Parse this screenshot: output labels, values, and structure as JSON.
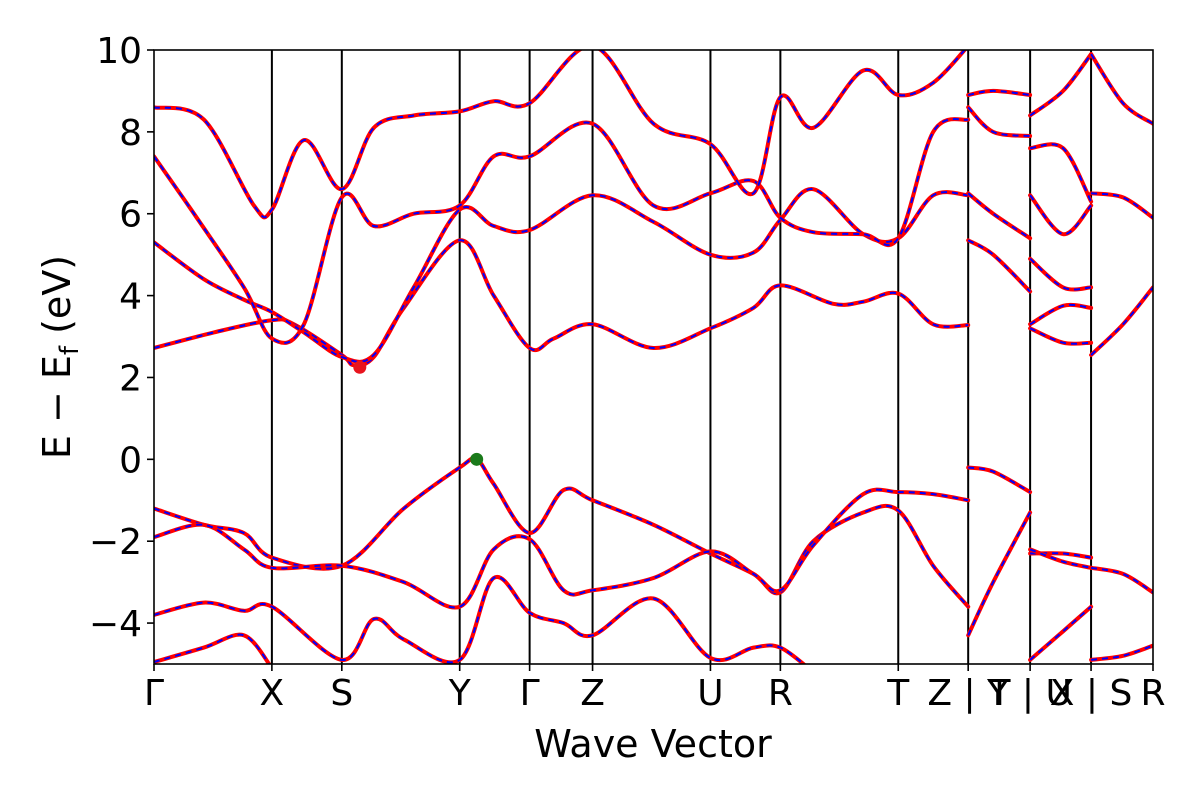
{
  "chart_data": {
    "type": "line",
    "title": "",
    "xlabel": "Wave Vector",
    "ylabel": "E − E_f (eV)",
    "ylabel_parts": {
      "main": "E − E",
      "sub": "f",
      "unit": " (eV)"
    },
    "ylim": [
      -5,
      10
    ],
    "yticks": [
      10,
      8,
      6,
      4,
      2,
      0,
      -2,
      -4
    ],
    "ytick_labels": [
      "10",
      "8",
      "6",
      "4",
      "2",
      "0",
      "−2",
      "−4"
    ],
    "xlim": [
      0,
      1
    ],
    "high_symmetry_points": [
      {
        "label": "Γ",
        "x": 0.0
      },
      {
        "label": "X",
        "x": 0.118
      },
      {
        "label": "S",
        "x": 0.188
      },
      {
        "label": "Y",
        "x": 0.306
      },
      {
        "label": "Γ",
        "x": 0.376
      },
      {
        "label": "Z",
        "x": 0.439
      },
      {
        "label": "U",
        "x": 0.557
      },
      {
        "label": "R",
        "x": 0.627
      },
      {
        "label": "T",
        "x": 0.745
      },
      {
        "label": "Z | Y",
        "x": 0.815
      },
      {
        "label": "T | U",
        "x": 0.877
      },
      {
        "label": "X | S",
        "x": 0.938
      },
      {
        "label": "R",
        "x": 1.0
      }
    ],
    "tick_text": [
      "Γ",
      "X",
      "S",
      "Y",
      "Γ",
      "Z",
      "U",
      "R",
      "T",
      "Z | Y",
      "T | U",
      "X | S",
      "R"
    ],
    "series": [
      {
        "color": "#ff0000",
        "style": "solid",
        "width": 4
      },
      {
        "color": "#0000ff",
        "style": "dashed",
        "width": 2
      }
    ],
    "markers": [
      {
        "kind": "cbm",
        "x": 0.206,
        "y": 2.25,
        "color": "#e8141e"
      },
      {
        "kind": "vbm",
        "x": 0.323,
        "y": 0.0,
        "color": "#1a7a1a"
      }
    ],
    "bands": [
      [
        [
          0,
          2.72
        ],
        [
          0.06,
          3.1
        ],
        [
          0.118,
          3.4
        ],
        [
          0.14,
          3.3
        ],
        [
          0.188,
          2.55
        ],
        [
          0.2,
          2.3
        ],
        [
          0.22,
          2.5
        ],
        [
          0.25,
          3.7
        ],
        [
          0.306,
          5.35
        ],
        [
          0.34,
          4.0
        ],
        [
          0.376,
          2.72
        ],
        [
          0.4,
          2.95
        ],
        [
          0.439,
          3.3
        ],
        [
          0.5,
          2.72
        ],
        [
          0.557,
          3.2
        ],
        [
          0.6,
          3.7
        ],
        [
          0.627,
          4.25
        ],
        [
          0.68,
          3.8
        ],
        [
          0.71,
          3.85
        ],
        [
          0.745,
          4.05
        ],
        [
          0.78,
          3.3
        ],
        [
          0.815,
          3.28
        ]
      ],
      [
        [
          0,
          5.3
        ],
        [
          0.05,
          4.4
        ],
        [
          0.09,
          3.9
        ],
        [
          0.118,
          3.6
        ],
        [
          0.15,
          3.1
        ],
        [
          0.188,
          2.5
        ],
        [
          0.22,
          2.55
        ],
        [
          0.26,
          4.2
        ],
        [
          0.306,
          6.1
        ],
        [
          0.34,
          5.7
        ],
        [
          0.376,
          5.6
        ],
        [
          0.439,
          6.45
        ],
        [
          0.5,
          5.8
        ],
        [
          0.557,
          5.0
        ],
        [
          0.6,
          5.05
        ],
        [
          0.627,
          5.85
        ],
        [
          0.66,
          6.6
        ],
        [
          0.71,
          5.5
        ],
        [
          0.745,
          5.4
        ],
        [
          0.78,
          6.45
        ],
        [
          0.815,
          6.45
        ]
      ],
      [
        [
          0,
          7.4
        ],
        [
          0.04,
          6.0
        ],
        [
          0.09,
          4.2
        ],
        [
          0.118,
          2.95
        ],
        [
          0.15,
          3.3
        ],
        [
          0.188,
          6.4
        ],
        [
          0.22,
          5.7
        ],
        [
          0.26,
          6.0
        ],
        [
          0.306,
          6.2
        ],
        [
          0.34,
          7.4
        ],
        [
          0.376,
          7.4
        ],
        [
          0.439,
          8.2
        ],
        [
          0.5,
          6.2
        ],
        [
          0.557,
          6.5
        ],
        [
          0.6,
          6.8
        ],
        [
          0.627,
          5.9
        ],
        [
          0.66,
          5.55
        ],
        [
          0.71,
          5.5
        ],
        [
          0.745,
          5.4
        ],
        [
          0.78,
          8.0
        ],
        [
          0.815,
          8.3
        ]
      ],
      [
        [
          0,
          8.6
        ],
        [
          0.05,
          8.3
        ],
        [
          0.1,
          6.2
        ],
        [
          0.118,
          6.1
        ],
        [
          0.15,
          7.8
        ],
        [
          0.188,
          6.6
        ],
        [
          0.22,
          8.1
        ],
        [
          0.26,
          8.4
        ],
        [
          0.306,
          8.5
        ],
        [
          0.34,
          8.75
        ],
        [
          0.376,
          8.7
        ],
        [
          0.439,
          10.1
        ],
        [
          0.5,
          8.2
        ],
        [
          0.557,
          7.7
        ],
        [
          0.6,
          6.5
        ],
        [
          0.627,
          8.85
        ],
        [
          0.66,
          8.1
        ],
        [
          0.71,
          9.5
        ],
        [
          0.745,
          8.9
        ],
        [
          0.78,
          9.2
        ],
        [
          0.815,
          10.1
        ]
      ],
      [
        [
          0,
          -1.2
        ],
        [
          0.05,
          -1.6
        ],
        [
          0.09,
          -1.8
        ],
        [
          0.118,
          -2.4
        ],
        [
          0.188,
          -2.6
        ],
        [
          0.25,
          -1.2
        ],
        [
          0.306,
          -0.2
        ],
        [
          0.323,
          0.0
        ],
        [
          0.34,
          -0.6
        ],
        [
          0.376,
          -1.8
        ],
        [
          0.41,
          -0.75
        ],
        [
          0.439,
          -1.0
        ],
        [
          0.5,
          -1.6
        ],
        [
          0.557,
          -2.3
        ],
        [
          0.6,
          -2.8
        ],
        [
          0.627,
          -3.25
        ],
        [
          0.66,
          -2.0
        ],
        [
          0.71,
          -1.3
        ],
        [
          0.745,
          -1.25
        ],
        [
          0.78,
          -2.6
        ],
        [
          0.815,
          -3.6
        ]
      ],
      [
        [
          0,
          -1.9
        ],
        [
          0.05,
          -1.6
        ],
        [
          0.09,
          -2.2
        ],
        [
          0.118,
          -2.65
        ],
        [
          0.188,
          -2.6
        ],
        [
          0.25,
          -3.0
        ],
        [
          0.306,
          -3.6
        ],
        [
          0.34,
          -2.2
        ],
        [
          0.376,
          -1.95
        ],
        [
          0.41,
          -3.2
        ],
        [
          0.439,
          -3.2
        ],
        [
          0.5,
          -2.9
        ],
        [
          0.557,
          -2.25
        ],
        [
          0.6,
          -2.8
        ],
        [
          0.627,
          -3.2
        ],
        [
          0.66,
          -2.1
        ],
        [
          0.71,
          -0.85
        ],
        [
          0.745,
          -0.8
        ],
        [
          0.78,
          -0.85
        ],
        [
          0.815,
          -1.0
        ]
      ],
      [
        [
          0,
          -3.8
        ],
        [
          0.05,
          -3.5
        ],
        [
          0.09,
          -3.7
        ],
        [
          0.118,
          -3.6
        ],
        [
          0.188,
          -4.9
        ],
        [
          0.22,
          -3.9
        ],
        [
          0.25,
          -4.4
        ],
        [
          0.306,
          -4.9
        ],
        [
          0.34,
          -2.9
        ],
        [
          0.376,
          -3.75
        ],
        [
          0.41,
          -4.0
        ],
        [
          0.439,
          -4.3
        ],
        [
          0.5,
          -3.4
        ],
        [
          0.557,
          -4.85
        ],
        [
          0.6,
          -4.6
        ],
        [
          0.627,
          -4.6
        ],
        [
          0.66,
          -5.2
        ]
      ],
      [
        [
          0,
          -4.95
        ],
        [
          0.05,
          -4.6
        ],
        [
          0.09,
          -4.3
        ],
        [
          0.118,
          -5.1
        ]
      ],
      [
        [
          0.815,
          -0.2
        ],
        [
          0.84,
          -0.3
        ],
        [
          0.877,
          -0.8
        ]
      ],
      [
        [
          0.815,
          -4.3
        ],
        [
          0.84,
          -3.0
        ],
        [
          0.877,
          -1.3
        ]
      ],
      [
        [
          0.815,
          8.9
        ],
        [
          0.84,
          9.0
        ],
        [
          0.877,
          8.9
        ]
      ],
      [
        [
          0.815,
          8.6
        ],
        [
          0.84,
          8.0
        ],
        [
          0.877,
          7.9
        ]
      ],
      [
        [
          0.815,
          6.5
        ],
        [
          0.84,
          6.0
        ],
        [
          0.877,
          5.4
        ]
      ],
      [
        [
          0.815,
          5.35
        ],
        [
          0.84,
          5.0
        ],
        [
          0.877,
          4.1
        ]
      ],
      [
        [
          0.877,
          -2.3
        ],
        [
          0.91,
          -2.3
        ],
        [
          0.938,
          -2.4
        ]
      ],
      [
        [
          0.877,
          -2.2
        ],
        [
          0.91,
          -2.5
        ],
        [
          0.938,
          -2.65
        ]
      ],
      [
        [
          0.877,
          -4.9
        ],
        [
          0.91,
          -4.2
        ],
        [
          0.938,
          -3.6
        ]
      ],
      [
        [
          0.877,
          3.2
        ],
        [
          0.91,
          2.85
        ],
        [
          0.938,
          2.85
        ]
      ],
      [
        [
          0.877,
          3.3
        ],
        [
          0.91,
          3.75
        ],
        [
          0.938,
          3.7
        ]
      ],
      [
        [
          0.877,
          4.9
        ],
        [
          0.91,
          4.2
        ],
        [
          0.938,
          4.2
        ]
      ],
      [
        [
          0.877,
          6.45
        ],
        [
          0.91,
          5.5
        ],
        [
          0.938,
          6.2
        ]
      ],
      [
        [
          0.877,
          7.6
        ],
        [
          0.91,
          7.6
        ],
        [
          0.938,
          6.3
        ]
      ],
      [
        [
          0.877,
          8.4
        ],
        [
          0.91,
          9.0
        ],
        [
          0.938,
          9.9
        ]
      ],
      [
        [
          0.938,
          -2.65
        ],
        [
          0.97,
          -2.8
        ],
        [
          1.0,
          -3.25
        ]
      ],
      [
        [
          0.938,
          -4.9
        ],
        [
          0.97,
          -4.8
        ],
        [
          1.0,
          -4.55
        ]
      ],
      [
        [
          0.938,
          2.55
        ],
        [
          0.97,
          3.3
        ],
        [
          1.0,
          4.2
        ]
      ],
      [
        [
          0.938,
          6.5
        ],
        [
          0.97,
          6.4
        ],
        [
          1.0,
          5.9
        ]
      ],
      [
        [
          0.938,
          9.9
        ],
        [
          0.97,
          8.7
        ],
        [
          1.0,
          8.2
        ]
      ]
    ]
  }
}
